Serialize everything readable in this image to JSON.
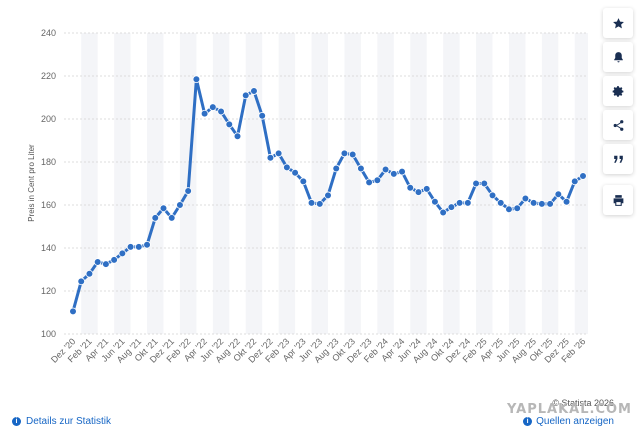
{
  "chart_data": {
    "type": "line",
    "ylabel": "Preis in Cent pro Liter",
    "ylim": [
      100,
      240
    ],
    "yticks": [
      "100",
      "120",
      "140",
      "160",
      "180",
      "200",
      "220",
      "240"
    ],
    "xticks": [
      "Dez '20",
      "Feb '21",
      "Apr '21",
      "Jun '21",
      "Aug '21",
      "Okt '21",
      "Dez '21",
      "Feb '22",
      "Apr '22",
      "Jun '22",
      "Aug '22",
      "Okt '22",
      "Dez '22",
      "Feb '23",
      "Apr '23",
      "Jun '23",
      "Aug '23",
      "Okt '23",
      "Dez '23",
      "Feb '24",
      "Apr '24",
      "Jun '24",
      "Aug '24",
      "Okt '24",
      "Dez '24",
      "Feb '25",
      "Apr '25",
      "Jun '25",
      "Aug '25",
      "Okt '25",
      "Dez '25",
      "Feb '26"
    ],
    "x": [
      "Dez '20",
      "Jan '21",
      "Feb '21",
      "Mär '21",
      "Apr '21",
      "Mai '21",
      "Jun '21",
      "Jul '21",
      "Aug '21",
      "Sep '21",
      "Okt '21",
      "Nov '21",
      "Dez '21",
      "Jan '22",
      "Feb '22",
      "Mär '22",
      "Apr '22",
      "Mai '22",
      "Jun '22",
      "Jul '22",
      "Aug '22",
      "Sep '22",
      "Okt '22",
      "Nov '22",
      "Dez '22",
      "Jan '23",
      "Feb '23",
      "Mär '23",
      "Apr '23",
      "Mai '23",
      "Jun '23",
      "Jul '23",
      "Aug '23",
      "Sep '23",
      "Okt '23",
      "Nov '23",
      "Dez '23",
      "Jan '24",
      "Feb '24",
      "Mär '24",
      "Apr '24",
      "Mai '24",
      "Jun '24",
      "Jul '24",
      "Aug '24",
      "Sep '24",
      "Okt '24",
      "Nov '24",
      "Dez '24",
      "Jan '25",
      "Feb '25",
      "Mär '25",
      "Apr '25",
      "Mai '25",
      "Jun '25",
      "Jul '25",
      "Aug '25",
      "Sep '25",
      "Okt '25",
      "Nov '25",
      "Dez '25",
      "Jan '26",
      "Feb '26"
    ],
    "series": [
      {
        "color": "#2f6fc4",
        "values": [
          110.5,
          124.5,
          128,
          133.5,
          132.5,
          134.5,
          137.5,
          140.5,
          140.5,
          141.5,
          154,
          158.5,
          154,
          160,
          166.5,
          218.5,
          202.5,
          205.5,
          203.5,
          197.5,
          192,
          211,
          213,
          201.5,
          182,
          184,
          177.5,
          175,
          171,
          161,
          160.5,
          164.5,
          177,
          184,
          183.5,
          177,
          170.5,
          171.5,
          176.5,
          174.5,
          175.5,
          168,
          166,
          167.5,
          161.5,
          156.5,
          159,
          161,
          161,
          170,
          170,
          164.5,
          161,
          158,
          158.5,
          163,
          161,
          160.5,
          160.5,
          165,
          161.5,
          171,
          173.5
        ]
      }
    ],
    "grid": true,
    "legend": "none"
  },
  "toolbar": {
    "items": [
      {
        "name": "star-icon"
      },
      {
        "name": "bell-icon"
      },
      {
        "name": "gear-icon"
      },
      {
        "name": "share-icon"
      },
      {
        "name": "quote-icon"
      },
      {
        "name": "print-icon"
      }
    ]
  },
  "footer": {
    "details_label": "Details zur Statistik",
    "sources_label": "Quellen anzeigen",
    "copyright": "© Statista 2026",
    "watermark": "YAPLAKAL.COM"
  },
  "colors": {
    "line": "#2f6fc4",
    "band": "#f4f5f8",
    "grid": "#dcdcdc",
    "link": "#1666c5"
  }
}
